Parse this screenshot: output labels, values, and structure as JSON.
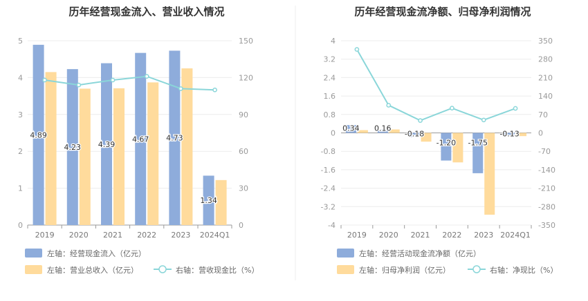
{
  "chart_data": [
    {
      "type": "bar",
      "title": "历年经营现金流入、营业收入情况",
      "categories": [
        "2019",
        "2020",
        "2021",
        "2022",
        "2023",
        "2024Q1"
      ],
      "ylim_left": [
        0,
        5
      ],
      "ylim_right": [
        0,
        150
      ],
      "yticks_left": [
        "5",
        "4",
        "3",
        "2",
        "1",
        "0"
      ],
      "yticks_right": [
        "150",
        "120",
        "90",
        "60",
        "30",
        "0"
      ],
      "series": [
        {
          "name": "左轴：经营现金流入（亿元）",
          "axis": "left",
          "kind": "bar",
          "color": "#8eacdb",
          "values": [
            4.89,
            4.23,
            4.39,
            4.67,
            4.73,
            1.34
          ],
          "labels": [
            "4.89",
            "4.23",
            "4.39",
            "4.67",
            "4.73",
            "1.34"
          ]
        },
        {
          "name": "左轴：营业总收入（亿元）",
          "axis": "left",
          "kind": "bar",
          "color": "#ffdb9c",
          "values": [
            4.15,
            3.7,
            3.71,
            3.87,
            4.25,
            1.22
          ]
        },
        {
          "name": "右轴：营收现金比（%）",
          "axis": "right",
          "kind": "line",
          "color": "#8ad6d9",
          "values": [
            118,
            114,
            118,
            121,
            111,
            110
          ]
        }
      ]
    },
    {
      "type": "bar",
      "title": "历年经营现金流净额、归母净利润情况",
      "categories": [
        "2019",
        "2020",
        "2021",
        "2022",
        "2023",
        "2024Q1"
      ],
      "ylim_left": [
        -4,
        4
      ],
      "ylim_right": [
        -350,
        350
      ],
      "yticks_left": [
        "4",
        "3.2",
        "2.4",
        "1.6",
        "0.8",
        "0",
        "-0.8",
        "-1.6",
        "-2.4",
        "-3.2",
        "-4"
      ],
      "yticks_right": [
        "350",
        "280",
        "210",
        "140",
        "70",
        "0",
        "-70",
        "-140",
        "-210",
        "-280",
        "-350"
      ],
      "series": [
        {
          "name": "左轴：经营活动现金流净额（亿元）",
          "axis": "left",
          "kind": "bar",
          "color": "#8eacdb",
          "values": [
            0.34,
            0.16,
            -0.18,
            -1.2,
            -1.75,
            -0.13
          ],
          "labels": [
            "0.34",
            "0.16",
            "-0.18",
            "-1.20",
            "-1.75",
            "-0.13"
          ]
        },
        {
          "name": "左轴：归母净利润（亿元）",
          "axis": "left",
          "kind": "bar",
          "color": "#ffdb9c",
          "values": [
            0.12,
            0.15,
            -0.38,
            -1.28,
            -3.55,
            -0.14
          ]
        },
        {
          "name": "右轴：净现比（%）",
          "axis": "right",
          "kind": "line",
          "color": "#8ad6d9",
          "values": [
            317,
            105,
            47,
            94,
            49,
            93
          ]
        }
      ]
    }
  ]
}
